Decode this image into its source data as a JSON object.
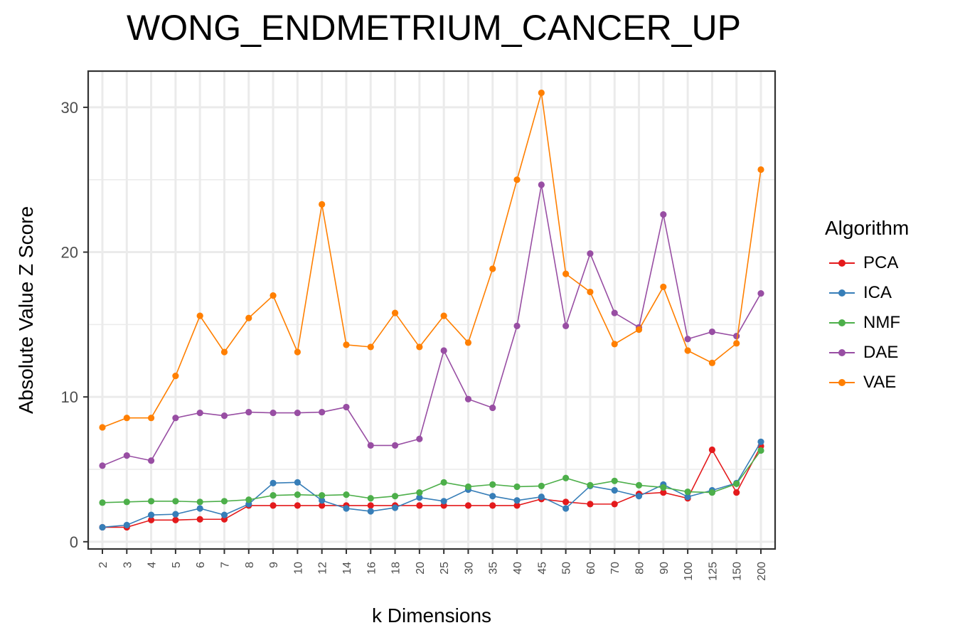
{
  "chart_data": {
    "type": "line",
    "title": "WONG_ENDMETRIUM_CANCER_UP",
    "xlabel": "k Dimensions",
    "ylabel": "Absolute Value Z Score",
    "categories": [
      "2",
      "3",
      "4",
      "5",
      "6",
      "7",
      "8",
      "9",
      "10",
      "12",
      "14",
      "16",
      "18",
      "20",
      "25",
      "30",
      "35",
      "40",
      "45",
      "50",
      "60",
      "70",
      "80",
      "90",
      "100",
      "125",
      "150",
      "200"
    ],
    "ylim": [
      -0.5,
      32.5
    ],
    "yticks": [
      0,
      10,
      20,
      30
    ],
    "legend_title": "Algorithm",
    "legend_position": "right",
    "grid": true,
    "series": [
      {
        "name": "PCA",
        "color": "#E41A1C",
        "values": [
          1.0,
          1.0,
          1.5,
          1.5,
          1.55,
          1.55,
          2.5,
          2.5,
          2.5,
          2.5,
          2.5,
          2.5,
          2.5,
          2.5,
          2.5,
          2.5,
          2.5,
          2.5,
          2.95,
          2.75,
          2.6,
          2.6,
          3.3,
          3.4,
          3.0,
          6.35,
          3.4,
          6.6
        ]
      },
      {
        "name": "ICA",
        "color": "#377EB8",
        "values": [
          1.0,
          1.15,
          1.85,
          1.9,
          2.3,
          1.85,
          2.6,
          4.05,
          4.1,
          2.85,
          2.3,
          2.1,
          2.35,
          3.05,
          2.8,
          3.6,
          3.15,
          2.85,
          3.1,
          2.3,
          3.85,
          3.55,
          3.15,
          3.95,
          3.1,
          3.55,
          4.05,
          6.9
        ]
      },
      {
        "name": "NMF",
        "color": "#4DAF4A",
        "values": [
          2.7,
          2.75,
          2.8,
          2.8,
          2.75,
          2.8,
          2.9,
          3.2,
          3.25,
          3.2,
          3.25,
          3.0,
          3.15,
          3.4,
          4.1,
          3.8,
          3.95,
          3.8,
          3.85,
          4.4,
          3.9,
          4.2,
          3.9,
          3.75,
          3.45,
          3.4,
          4.0,
          6.3
        ]
      },
      {
        "name": "DAE",
        "color": "#984EA3",
        "values": [
          5.25,
          5.95,
          5.6,
          8.55,
          8.9,
          8.7,
          8.95,
          8.9,
          8.9,
          8.95,
          9.3,
          6.65,
          6.65,
          7.1,
          13.2,
          9.85,
          9.25,
          14.9,
          24.65,
          14.9,
          19.9,
          15.8,
          14.8,
          22.6,
          14.0,
          14.5,
          14.2,
          17.15
        ]
      },
      {
        "name": "VAE",
        "color": "#FF7F00",
        "values": [
          7.9,
          8.55,
          8.55,
          11.45,
          15.6,
          13.1,
          15.45,
          17.0,
          13.1,
          23.3,
          13.6,
          13.45,
          15.8,
          13.45,
          15.6,
          13.75,
          18.85,
          25.0,
          31.0,
          18.5,
          17.25,
          13.65,
          14.65,
          17.6,
          13.2,
          12.35,
          13.7,
          25.7
        ]
      }
    ]
  }
}
